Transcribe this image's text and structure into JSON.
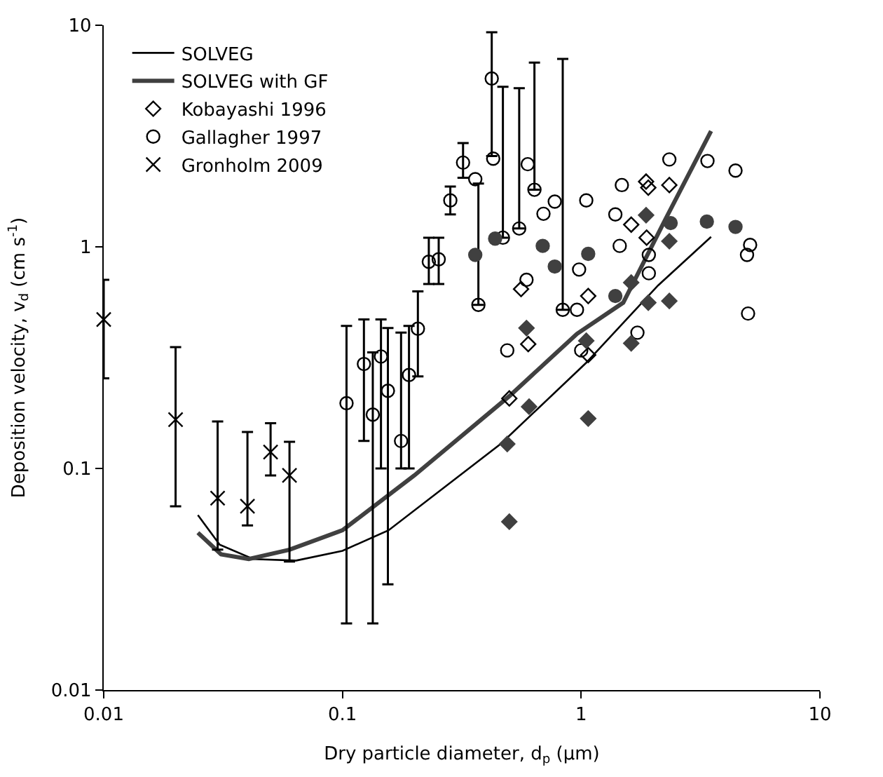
{
  "chart_data": {
    "type": "scatter",
    "xlabel": "Dry particle diameter, d$_{p}$ (μm)",
    "ylabel": "Deposition velocity, v$_{d}$ (cm s$^{-1}$)",
    "log": "xy",
    "xlim": [
      0.01,
      10
    ],
    "ylim": [
      0.01,
      10
    ],
    "xticks": [
      0.01,
      0.1,
      1,
      10
    ],
    "yticks": [
      0.01,
      0.1,
      1,
      10
    ],
    "legend": "top left",
    "series": [
      {
        "name": "SOLVEG",
        "type": "line",
        "color": "#000000",
        "line_style": "solid",
        "marker": "none",
        "x": [
          0.0248,
          0.0306,
          0.0423,
          0.064,
          0.1,
          0.156,
          0.46,
          1.05,
          2.1,
          3.5
        ],
        "values": [
          0.0616,
          0.0453,
          0.039,
          0.0384,
          0.0425,
          0.0526,
          0.129,
          0.3,
          0.67,
          1.11
        ]
      },
      {
        "name": "SOLVEG with GF",
        "type": "line",
        "color": "#404040",
        "line_style": "solid",
        "marker": "none",
        "x": [
          0.0248,
          0.031,
          0.0405,
          0.06,
          0.1,
          0.2,
          0.5,
          0.96,
          1.5,
          2.26,
          3.5
        ],
        "values": [
          0.0513,
          0.041,
          0.039,
          0.043,
          0.0526,
          0.093,
          0.212,
          0.405,
          0.56,
          1.34,
          3.33
        ]
      },
      {
        "name": "Kobayashi 1996",
        "color": "#000000",
        "marker": "diamond",
        "x": [
          0.56,
          1.07,
          1.62,
          1.87,
          1.91,
          2.34,
          1.88,
          0.6,
          0.5,
          1.07
        ],
        "values": [
          0.645,
          0.6,
          1.26,
          1.97,
          1.85,
          1.9,
          1.1,
          0.364,
          0.207,
          0.325
        ]
      },
      {
        "name": "Gallagher 1997",
        "color": "#000000",
        "marker": "circle",
        "x": [
          0.104,
          0.123,
          0.134,
          0.145,
          0.155,
          0.176,
          0.19,
          0.207,
          0.23,
          0.253,
          0.283,
          0.32,
          0.36,
          0.371,
          0.422,
          0.428,
          0.47,
          0.55,
          0.597,
          0.637,
          0.837,
          0.695,
          0.775,
          1.05,
          1.48,
          1.39,
          1.45,
          2.34,
          3.38,
          4.43,
          5.1,
          4.95,
          5.0,
          1.92,
          1.92,
          0.98,
          0.96,
          0.59,
          1.72,
          0.49,
          1.0
        ],
        "values": [
          0.197,
          0.296,
          0.175,
          0.32,
          0.224,
          0.133,
          0.264,
          0.427,
          0.857,
          0.879,
          1.62,
          2.4,
          2.02,
          0.547,
          5.75,
          2.5,
          1.1,
          1.21,
          2.36,
          1.81,
          0.52,
          1.41,
          1.6,
          1.62,
          1.9,
          1.4,
          1.01,
          2.48,
          2.44,
          2.21,
          1.02,
          0.92,
          0.5,
          0.92,
          0.76,
          0.79,
          0.52,
          0.71,
          0.41,
          0.341,
          0.341
        ],
        "errors": [
          [
            0.02,
            0.44
          ],
          [
            0.133,
            0.47
          ],
          [
            0.02,
            0.334
          ],
          [
            0.1,
            0.47
          ],
          [
            0.03,
            0.43
          ],
          [
            0.1,
            0.41
          ],
          [
            0.1,
            0.44
          ],
          [
            0.26,
            0.63
          ],
          [
            0.68,
            1.1
          ],
          [
            0.68,
            1.1
          ],
          [
            1.4,
            1.87
          ],
          [
            2.05,
            2.94
          ],
          null,
          [
            0.547,
            1.93
          ],
          [
            2.57,
            9.29
          ],
          null,
          [
            1.1,
            5.28
          ],
          [
            1.21,
            5.2
          ],
          null,
          [
            1.81,
            6.78
          ],
          [
            0.52,
            7.05
          ],
          null,
          null,
          null,
          null,
          null,
          null,
          null,
          null,
          null,
          null,
          null,
          null,
          null,
          null,
          null,
          null,
          null,
          null,
          null,
          null
        ]
      },
      {
        "name": "Gronholm 2009",
        "color": "#000000",
        "marker": "cross",
        "x": [
          0.01,
          0.02,
          0.03,
          0.04,
          0.05,
          0.06
        ],
        "values": [
          0.47,
          0.166,
          0.0734,
          0.0675,
          0.1186,
          0.093
        ],
        "errors": [
          [
            0.255,
            0.71
          ],
          [
            0.0675,
            0.353
          ],
          [
            0.043,
            0.163
          ],
          [
            0.0553,
            0.146
          ],
          [
            0.093,
            0.16
          ],
          [
            0.038,
            0.132
          ]
        ]
      },
      {
        "color": "#404040",
        "marker": "diamond",
        "x": [
          1.87,
          2.34,
          1.62,
          1.91,
          2.34,
          0.59,
          1.05,
          1.62,
          0.605,
          0.49,
          1.07,
          0.5
        ],
        "values": [
          1.39,
          1.06,
          0.69,
          0.56,
          0.57,
          0.43,
          0.377,
          0.367,
          0.19,
          0.129,
          0.168,
          0.0575
        ]
      },
      {
        "color": "#404040",
        "marker": "circle",
        "x": [
          0.36,
          0.436,
          0.69,
          0.775,
          1.07,
          1.39,
          2.37,
          3.36,
          4.43
        ],
        "values": [
          0.92,
          1.09,
          1.01,
          0.815,
          0.93,
          0.6,
          1.28,
          1.3,
          1.23
        ]
      }
    ]
  }
}
